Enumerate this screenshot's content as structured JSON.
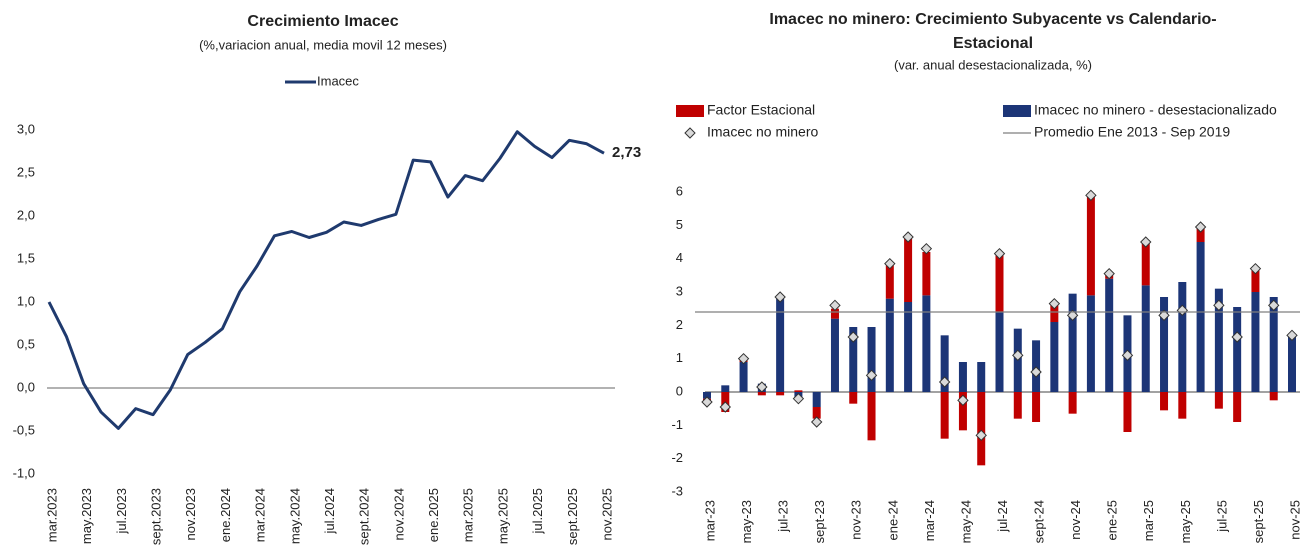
{
  "chart_data": [
    {
      "type": "line",
      "title": "Crecimiento Imacec",
      "subtitle": "(%,variacion anual, media movil 12 meses)",
      "categories": [
        "mar.2023",
        null,
        "may.2023",
        null,
        "jul.2023",
        null,
        "sept.2023",
        null,
        "nov.2023",
        null,
        "ene.2024",
        null,
        "mar.2024",
        null,
        "may.2024",
        null,
        "jul.2024",
        null,
        "sept.2024",
        null,
        "nov.2024",
        null,
        "ene.2025",
        null,
        "mar.2025",
        null,
        "may.2025",
        null,
        "jul.2025",
        null,
        "sept.2025",
        null,
        "nov.2025"
      ],
      "series": [
        {
          "name": "Imacec",
          "color": "#1f3a6e",
          "values": [
            1.0,
            0.6,
            0.05,
            -0.28,
            -0.47,
            -0.24,
            -0.31,
            -0.02,
            0.39,
            0.53,
            0.69,
            1.12,
            1.42,
            1.77,
            1.82,
            1.75,
            1.81,
            1.93,
            1.89,
            1.96,
            2.02,
            2.65,
            2.63,
            2.22,
            2.47,
            2.41,
            2.67,
            2.98,
            2.81,
            2.68,
            2.88,
            2.84,
            2.73
          ],
          "value_labels": [
            null,
            null,
            null,
            null,
            null,
            null,
            null,
            null,
            null,
            null,
            null,
            null,
            null,
            null,
            null,
            null,
            null,
            null,
            null,
            null,
            null,
            null,
            null,
            null,
            null,
            null,
            null,
            null,
            null,
            null,
            null,
            null,
            "2,73"
          ]
        }
      ],
      "ylim": [
        -1,
        3
      ],
      "yticks": [
        {
          "value": -1,
          "label": "-1,0"
        },
        {
          "value": -0.5,
          "label": "-0,5"
        },
        {
          "value": 0,
          "label": "0,0"
        },
        {
          "value": 0.5,
          "label": "0,5"
        },
        {
          "value": 1,
          "label": "1,0"
        },
        {
          "value": 1.5,
          "label": "1,5"
        },
        {
          "value": 2,
          "label": "2,0"
        },
        {
          "value": 2.5,
          "label": "2,5"
        },
        {
          "value": 3,
          "label": "3,0"
        }
      ],
      "grid": false
    },
    {
      "type": "combo",
      "title": [
        "Imacec no minero:  Crecimiento Subyacente vs Calendario-",
        "Estacional"
      ],
      "subtitle": "(var. anual desestacionalizada, %)",
      "categories": [
        "mar-23",
        null,
        "may-23",
        null,
        "jul-23",
        null,
        "sept-23",
        null,
        "nov-23",
        null,
        "ene-24",
        null,
        "mar-24",
        null,
        "may-24",
        null,
        "jul-24",
        null,
        "sept-24",
        null,
        "nov-24",
        null,
        "ene-25",
        null,
        "mar-25",
        null,
        "may-25",
        null,
        "jul-25",
        null,
        "sept-25",
        null,
        "nov-25"
      ],
      "series": [
        {
          "name": "Factor Estacional",
          "type": "bar",
          "stack": true,
          "color": "#c00000",
          "values": [
            -0.1,
            -0.6,
            0.1,
            -0.1,
            -0.1,
            0.05,
            -0.35,
            0.3,
            -0.35,
            -1.45,
            1.0,
            1.9,
            1.3,
            -1.4,
            -1.15,
            -2.2,
            1.7,
            -0.8,
            -0.9,
            0.5,
            -0.65,
            3.0,
            0.15,
            -1.2,
            1.25,
            -0.55,
            -0.8,
            0.4,
            -0.5,
            -0.9,
            0.65,
            -0.25,
            0.05
          ]
        },
        {
          "name": "Imacec no minero - desestacionalizado",
          "type": "bar",
          "color": "#1c3577",
          "values": [
            -0.2,
            0.2,
            0.9,
            0.25,
            2.8,
            -0.2,
            -0.45,
            2.2,
            1.95,
            1.95,
            2.8,
            2.7,
            2.9,
            1.7,
            0.9,
            0.9,
            2.4,
            1.9,
            1.55,
            2.1,
            2.95,
            2.9,
            3.4,
            2.3,
            3.2,
            2.85,
            3.3,
            4.5,
            3.1,
            2.55,
            3.0,
            2.85,
            1.65
          ]
        },
        {
          "name": "Imacec no minero",
          "type": "scatter",
          "color": "#d9d9d9",
          "values": [
            -0.3,
            -0.45,
            1.0,
            0.15,
            2.85,
            -0.2,
            -0.9,
            2.6,
            1.65,
            0.5,
            3.85,
            4.65,
            4.3,
            0.3,
            -0.25,
            -1.3,
            4.15,
            1.1,
            0.6,
            2.65,
            2.3,
            5.9,
            3.55,
            1.1,
            4.5,
            2.3,
            2.45,
            4.95,
            2.6,
            1.65,
            3.7,
            2.6,
            1.7
          ]
        },
        {
          "name": "Promedio Ene 2013 - Sep 2019",
          "type": "hline",
          "color": "#7f7f7f",
          "value": 2.4
        }
      ],
      "ylim": [
        -3,
        6
      ],
      "yticks": [
        -3,
        -2,
        -1,
        0,
        1,
        2,
        3,
        4,
        5,
        6
      ],
      "grid": false
    }
  ]
}
